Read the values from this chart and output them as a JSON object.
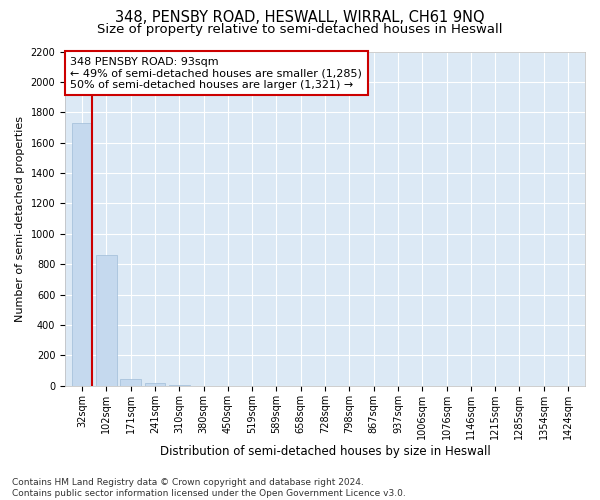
{
  "title": "348, PENSBY ROAD, HESWALL, WIRRAL, CH61 9NQ",
  "subtitle": "Size of property relative to semi-detached houses in Heswall",
  "xlabel": "Distribution of semi-detached houses by size in Heswall",
  "ylabel": "Number of semi-detached properties",
  "categories": [
    "32sqm",
    "102sqm",
    "171sqm",
    "241sqm",
    "310sqm",
    "380sqm",
    "450sqm",
    "519sqm",
    "589sqm",
    "658sqm",
    "728sqm",
    "798sqm",
    "867sqm",
    "937sqm",
    "1006sqm",
    "1076sqm",
    "1146sqm",
    "1215sqm",
    "1285sqm",
    "1354sqm",
    "1424sqm"
  ],
  "values": [
    1730,
    860,
    45,
    20,
    5,
    2,
    1,
    0,
    0,
    0,
    0,
    0,
    0,
    0,
    0,
    0,
    0,
    0,
    0,
    0,
    0
  ],
  "bar_color": "#c5d9ee",
  "bar_edge_color": "#a0bdd8",
  "property_line_color": "#cc0000",
  "annotation_text": "348 PENSBY ROAD: 93sqm\n← 49% of semi-detached houses are smaller (1,285)\n50% of semi-detached houses are larger (1,321) →",
  "annotation_box_facecolor": "#ffffff",
  "annotation_box_edgecolor": "#cc0000",
  "ylim": [
    0,
    2200
  ],
  "yticks": [
    0,
    200,
    400,
    600,
    800,
    1000,
    1200,
    1400,
    1600,
    1800,
    2000,
    2200
  ],
  "bg_color": "#dce9f5",
  "grid_color": "#ffffff",
  "footnote": "Contains HM Land Registry data © Crown copyright and database right 2024.\nContains public sector information licensed under the Open Government Licence v3.0.",
  "title_fontsize": 10.5,
  "subtitle_fontsize": 9.5,
  "xlabel_fontsize": 8.5,
  "ylabel_fontsize": 8,
  "tick_fontsize": 7,
  "annotation_fontsize": 8,
  "footnote_fontsize": 6.5
}
